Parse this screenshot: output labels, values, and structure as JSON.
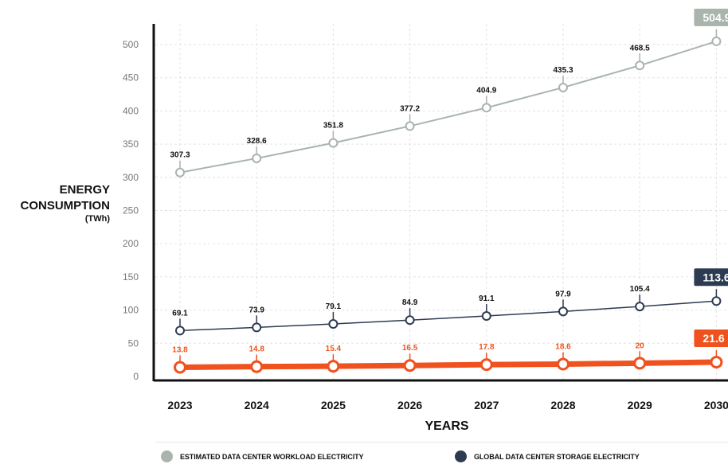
{
  "chart_data": {
    "type": "line",
    "xlabel": "YEARS",
    "ylabel_lines": [
      "ENERGY",
      "CONSUMPTION",
      "(TWh)"
    ],
    "categories": [
      "2023",
      "2024",
      "2025",
      "2026",
      "2027",
      "2028",
      "2029",
      "2030"
    ],
    "yticks": [
      0,
      50,
      100,
      150,
      200,
      250,
      300,
      350,
      400,
      450,
      500
    ],
    "ylim": [
      0,
      525
    ],
    "grid": true,
    "legend_position": "bottom",
    "series": [
      {
        "name": "ESTIMATED DATA CENTER WORKLOAD ELECTRICITY",
        "values": [
          307.3,
          328.6,
          351.8,
          377.2,
          404.9,
          435.3,
          468.5,
          504.9
        ],
        "labels": [
          "307.3",
          "328.6",
          "351.8",
          "377.2",
          "404.9",
          "435.3",
          "468.5",
          "504.9"
        ],
        "color": "#a9b4ad"
      },
      {
        "name": "GLOBAL DATA CENTER STORAGE ELECTRICITY",
        "values": [
          69.1,
          73.9,
          79.1,
          84.9,
          91.1,
          97.9,
          105.4,
          113.6
        ],
        "labels": [
          "69.1",
          "73.9",
          "79.1",
          "84.9",
          "91.1",
          "97.9",
          "105.4",
          "113.6"
        ],
        "color": "#2c3b52"
      },
      {
        "name": "",
        "values": [
          13.8,
          14.8,
          15.4,
          16.5,
          17.8,
          18.6,
          20,
          21.6
        ],
        "labels": [
          "13.8",
          "14.8",
          "15.4",
          "16.5",
          "17.8",
          "18.6",
          "20",
          "21.6"
        ],
        "color": "#f0521f"
      }
    ]
  }
}
